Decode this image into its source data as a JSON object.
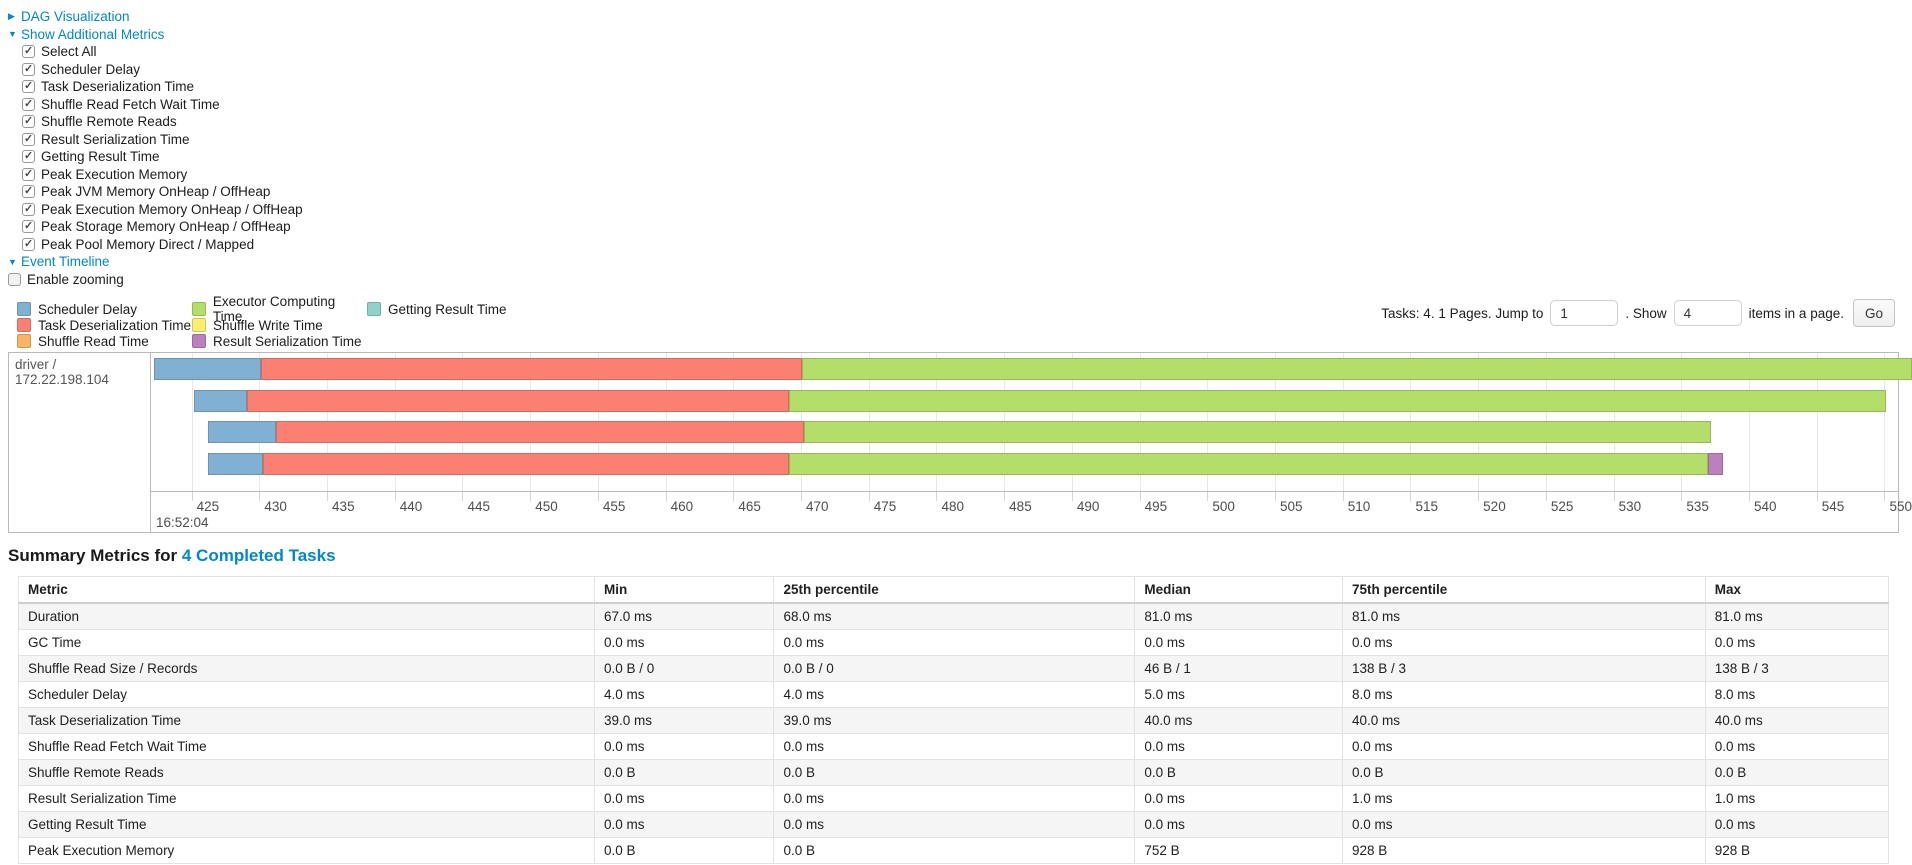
{
  "sections": {
    "dag_arrow": "▶",
    "dag_label": "DAG Visualization",
    "metrics_arrow": "▼",
    "metrics_label": "Show Additional Metrics",
    "timeline_arrow": "▼",
    "timeline_label": "Event Timeline"
  },
  "metrics_panel": {
    "items": [
      {
        "label": "Select All",
        "checked": true
      },
      {
        "label": "Scheduler Delay",
        "checked": true
      },
      {
        "label": "Task Deserialization Time",
        "checked": true
      },
      {
        "label": "Shuffle Read Fetch Wait Time",
        "checked": true
      },
      {
        "label": "Shuffle Remote Reads",
        "checked": true
      },
      {
        "label": "Result Serialization Time",
        "checked": true
      },
      {
        "label": "Getting Result Time",
        "checked": true
      },
      {
        "label": "Peak Execution Memory",
        "checked": true
      },
      {
        "label": "Peak JVM Memory OnHeap / OffHeap",
        "checked": true
      },
      {
        "label": "Peak Execution Memory OnHeap / OffHeap",
        "checked": true
      },
      {
        "label": "Peak Storage Memory OnHeap / OffHeap",
        "checked": true
      },
      {
        "label": "Peak Pool Memory Direct / Mapped",
        "checked": true
      }
    ]
  },
  "enable_zooming": {
    "label": "Enable zooming",
    "checked": false
  },
  "legend": {
    "columns": [
      [
        {
          "label": "Scheduler Delay",
          "fill": "#80B1D3",
          "stroke": "#6B94B0"
        },
        {
          "label": "Task Deserialization Time",
          "fill": "#FB8072",
          "stroke": "#D26B5F"
        },
        {
          "label": "Shuffle Read Time",
          "fill": "#FDB462",
          "stroke": "#D39651"
        }
      ],
      [
        {
          "label": "Executor Computing Time",
          "fill": "#B3DE69",
          "stroke": "#95B957"
        },
        {
          "label": "Shuffle Write Time",
          "fill": "#FFED6F",
          "stroke": "#D5C65C"
        },
        {
          "label": "Result Serialization Time",
          "fill": "#BC80BD",
          "stroke": "#9D6B9E"
        }
      ],
      [
        {
          "label": "Getting Result Time",
          "fill": "#8DD3C7",
          "stroke": "#75B0A6"
        }
      ]
    ]
  },
  "pagination": {
    "prefix": "Tasks: 4. 1 Pages. Jump to",
    "jump_value": "1",
    "mid": ". Show",
    "show_value": "4",
    "suffix": "items in a page.",
    "go_label": "Go"
  },
  "timeline": {
    "group_label": "driver / 172.22.198.104",
    "axis": {
      "min": 422.0,
      "max": 551.0,
      "tick_start": 425,
      "tick_end": 550,
      "tick_step": 5,
      "unit": "ms",
      "major_label": "16:52:04"
    },
    "palette": {
      "scheduler-delay": {
        "fill": "#80B1D3",
        "stroke": "#6B94B0"
      },
      "task-deserialization": {
        "fill": "#FB8072",
        "stroke": "#D26B5F"
      },
      "executor-computing": {
        "fill": "#B3DE69",
        "stroke": "#95B957"
      },
      "result-serialization": {
        "fill": "#BC80BD",
        "stroke": "#9D6B9E"
      }
    },
    "tasks": [
      {
        "segments": [
          {
            "type": "scheduler-delay",
            "start": 422.2,
            "end": 430.1
          },
          {
            "type": "task-deserialization",
            "start": 430.1,
            "end": 470.1
          },
          {
            "type": "executor-computing",
            "start": 470.1,
            "end": 552.0
          }
        ]
      },
      {
        "segments": [
          {
            "type": "scheduler-delay",
            "start": 425.2,
            "end": 429.1
          },
          {
            "type": "task-deserialization",
            "start": 429.1,
            "end": 469.1
          },
          {
            "type": "executor-computing",
            "start": 469.1,
            "end": 550.1
          }
        ]
      },
      {
        "segments": [
          {
            "type": "scheduler-delay",
            "start": 426.2,
            "end": 431.2
          },
          {
            "type": "task-deserialization",
            "start": 431.2,
            "end": 470.2
          },
          {
            "type": "executor-computing",
            "start": 470.2,
            "end": 537.2
          }
        ]
      },
      {
        "segments": [
          {
            "type": "scheduler-delay",
            "start": 426.2,
            "end": 430.3
          },
          {
            "type": "task-deserialization",
            "start": 430.3,
            "end": 469.1
          },
          {
            "type": "executor-computing",
            "start": 469.1,
            "end": 537.0
          },
          {
            "type": "result-serialization",
            "start": 537.0,
            "end": 538.1
          }
        ]
      }
    ]
  },
  "summary": {
    "heading_prefix": "Summary Metrics for",
    "heading_link": "4 Completed Tasks",
    "columns": [
      "Metric",
      "Min",
      "25th percentile",
      "Median",
      "75th percentile",
      "Max"
    ],
    "col_widths": [
      "30.8%",
      "9.6%",
      "19.3%",
      "11.1%",
      "19.4%",
      "9.8%"
    ],
    "rows": [
      [
        "Duration",
        "67.0 ms",
        "68.0 ms",
        "81.0 ms",
        "81.0 ms",
        "81.0 ms"
      ],
      [
        "GC Time",
        "0.0 ms",
        "0.0 ms",
        "0.0 ms",
        "0.0 ms",
        "0.0 ms"
      ],
      [
        "Shuffle Read Size / Records",
        "0.0 B / 0",
        "0.0 B / 0",
        "46 B / 1",
        "138 B / 3",
        "138 B / 3"
      ],
      [
        "Scheduler Delay",
        "4.0 ms",
        "4.0 ms",
        "5.0 ms",
        "8.0 ms",
        "8.0 ms"
      ],
      [
        "Task Deserialization Time",
        "39.0 ms",
        "39.0 ms",
        "40.0 ms",
        "40.0 ms",
        "40.0 ms"
      ],
      [
        "Shuffle Read Fetch Wait Time",
        "0.0 ms",
        "0.0 ms",
        "0.0 ms",
        "0.0 ms",
        "0.0 ms"
      ],
      [
        "Shuffle Remote Reads",
        "0.0 B",
        "0.0 B",
        "0.0 B",
        "0.0 B",
        "0.0 B"
      ],
      [
        "Result Serialization Time",
        "0.0 ms",
        "0.0 ms",
        "0.0 ms",
        "1.0 ms",
        "1.0 ms"
      ],
      [
        "Getting Result Time",
        "0.0 ms",
        "0.0 ms",
        "0.0 ms",
        "0.0 ms",
        "0.0 ms"
      ],
      [
        "Peak Execution Memory",
        "0.0 B",
        "0.0 B",
        "752 B",
        "928 B",
        "928 B"
      ]
    ]
  },
  "colors": {
    "link": "#0088cc",
    "axis_text": "#4d4d4d",
    "timeline_border": "#b9b9b9",
    "table_stripe": "#f5f5f5"
  }
}
